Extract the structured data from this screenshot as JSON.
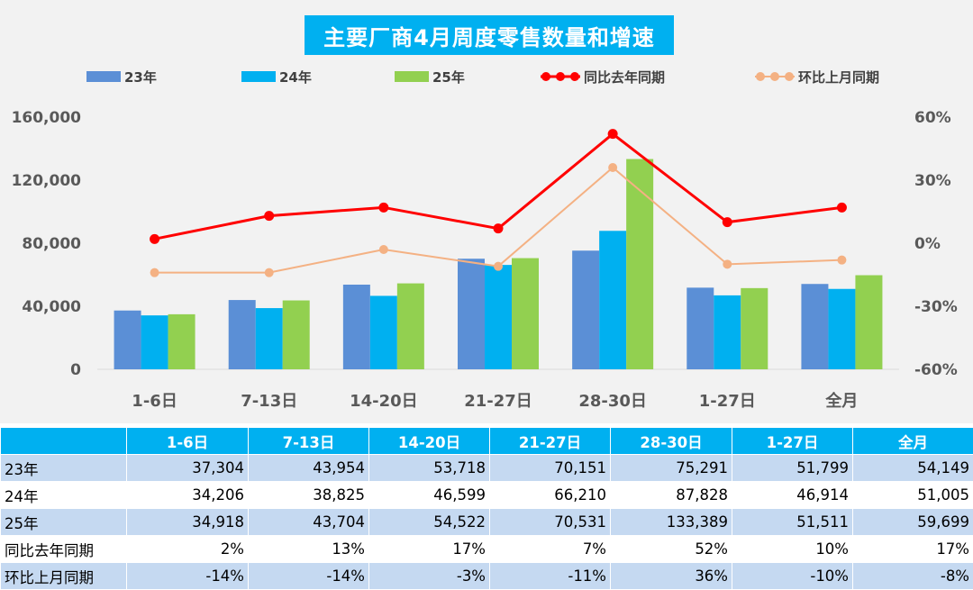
{
  "title": "主要厂商4月周度零售数量和增速",
  "chart_data": {
    "type": "bar",
    "categories": [
      "1-6日",
      "7-13日",
      "14-20日",
      "21-27日",
      "28-30日",
      "1-27日",
      "全月"
    ],
    "series": [
      {
        "name": "23年",
        "type": "bar",
        "color": "#5b8fd6",
        "values": [
          37304,
          43954,
          53718,
          70151,
          75291,
          51799,
          54149
        ]
      },
      {
        "name": "24年",
        "type": "bar",
        "color": "#00b0f0",
        "values": [
          34206,
          38825,
          46599,
          66210,
          87828,
          46914,
          51005
        ]
      },
      {
        "name": "25年",
        "type": "bar",
        "color": "#92d050",
        "values": [
          34918,
          43704,
          54522,
          70531,
          133389,
          51511,
          59699
        ]
      },
      {
        "name": "同比去年同期",
        "type": "line",
        "axis": "right",
        "color": "#ff0000",
        "values": [
          2,
          13,
          17,
          7,
          52,
          10,
          17
        ]
      },
      {
        "name": "环比上月同期",
        "type": "line",
        "axis": "right",
        "color": "#f4b183",
        "values": [
          -14,
          -14,
          -3,
          -11,
          36,
          -10,
          -8
        ]
      }
    ],
    "y_left": {
      "min": 0,
      "max": 160000,
      "ticks": [
        "0",
        "40,000",
        "80,000",
        "120,000",
        "160,000"
      ]
    },
    "y_right": {
      "min": -60,
      "max": 60,
      "ticks": [
        "-60%",
        "-30%",
        "0%",
        "30%",
        "60%"
      ]
    },
    "legend_position": "top",
    "grid": false
  },
  "table": {
    "headers": [
      "",
      "1-6日",
      "7-13日",
      "14-20日",
      "21-27日",
      "28-30日",
      "1-27日",
      "全月"
    ],
    "rows": [
      {
        "label": "23年",
        "cells": [
          "37,304",
          "43,954",
          "53,718",
          "70,151",
          "75,291",
          "51,799",
          "54,149"
        ]
      },
      {
        "label": "24年",
        "cells": [
          "34,206",
          "38,825",
          "46,599",
          "66,210",
          "87,828",
          "46,914",
          "51,005"
        ]
      },
      {
        "label": "25年",
        "cells": [
          "34,918",
          "43,704",
          "54,522",
          "70,531",
          "133,389",
          "51,511",
          "59,699"
        ]
      },
      {
        "label": "同比去年同期",
        "cells": [
          "2%",
          "13%",
          "17%",
          "7%",
          "52%",
          "10%",
          "17%"
        ]
      },
      {
        "label": "环比上月同期",
        "cells": [
          "-14%",
          "-14%",
          "-3%",
          "-11%",
          "36%",
          "-10%",
          "-8%"
        ]
      }
    ]
  }
}
